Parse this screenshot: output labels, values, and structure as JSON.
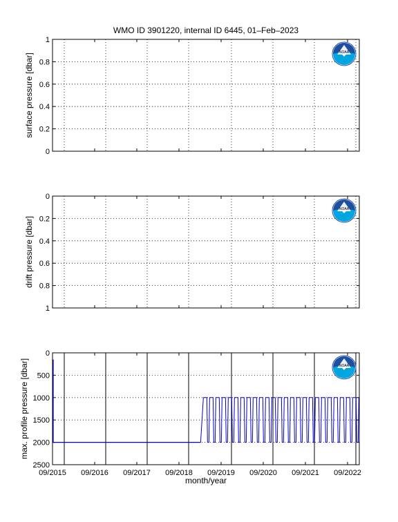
{
  "title": "WMO ID 3901220, internal ID 6445, 01–Feb–2023",
  "colors": {
    "series": "#0000cc",
    "axis": "#000000",
    "grid": "#000000",
    "logo_blue": "#1e4e9e",
    "logo_cyan": "#00a6e0"
  },
  "logo": {
    "icon": "noaa-logo",
    "text": "NOAA"
  },
  "xaxis": {
    "label": "month/year",
    "ticks": [
      "09/2015",
      "09/2016",
      "09/2017",
      "09/2018",
      "09/2019",
      "09/2020",
      "09/2021",
      "09/2022"
    ]
  },
  "chart_data": [
    {
      "type": "line",
      "ylabel": "surface pressure [dbar]",
      "ylim": [
        0,
        1
      ],
      "y_reversed": false,
      "yticks": [
        "0",
        "0.2",
        "0.4",
        "0.6",
        "0.8",
        "1"
      ],
      "grid": "dotted",
      "series": []
    },
    {
      "type": "line",
      "ylabel": "drift pressure [dbar]",
      "ylim": [
        0,
        1
      ],
      "y_reversed": true,
      "yticks": [
        "0",
        "0.2",
        "0.4",
        "0.6",
        "0.8",
        "1"
      ],
      "grid": "dotted",
      "series": []
    },
    {
      "type": "line",
      "ylabel": "max. profile pressure [dbar]",
      "ylim": [
        0,
        2500
      ],
      "y_reversed": true,
      "yticks": [
        "0",
        "500",
        "1000",
        "1500",
        "2000",
        "2500"
      ],
      "grid": "dotted",
      "xlim": [
        "2015-09",
        "2022-12"
      ],
      "series": [
        {
          "segments": [
            {
              "x_start": "2015-09",
              "x_end": "2019-03",
              "y": 2000,
              "pattern": "constant"
            },
            {
              "x_start": "2019-03",
              "x_end": "2022-12",
              "y_min": 1000,
              "y_max": 2000,
              "pattern": "alternating"
            }
          ],
          "initial_spike": {
            "x": "2015-09",
            "y_min": 150,
            "y_max": 2000
          }
        }
      ]
    }
  ]
}
